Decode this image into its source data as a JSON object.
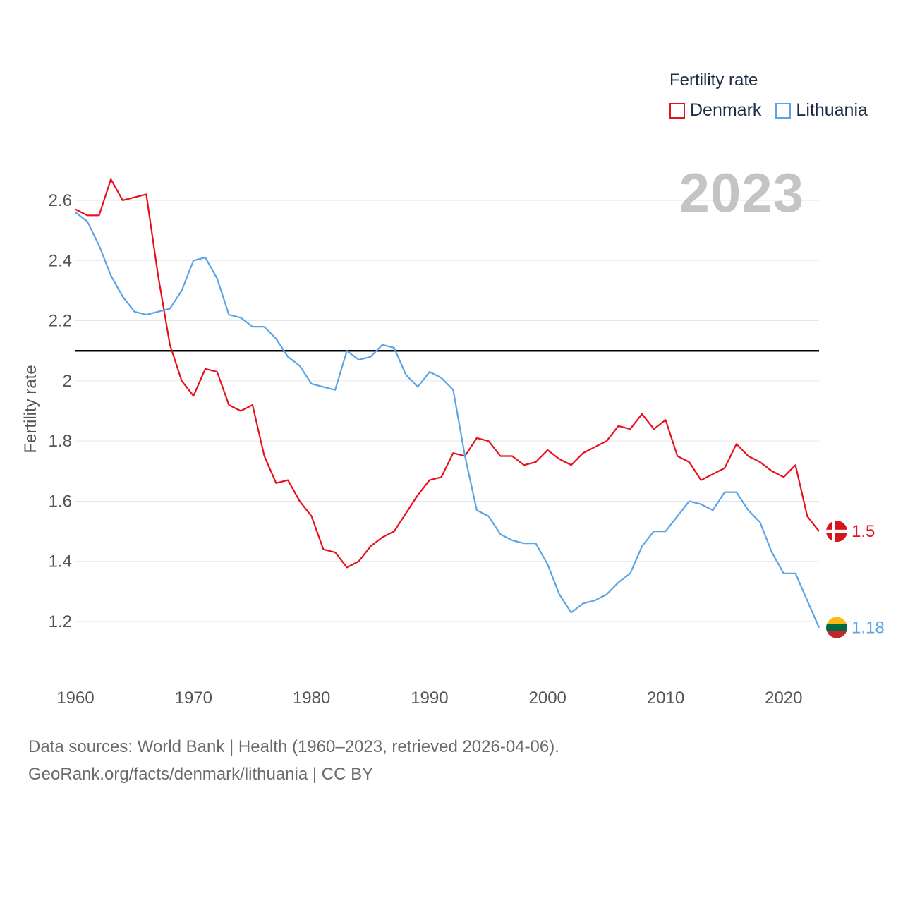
{
  "legend": {
    "title": "Fertility rate",
    "items": [
      {
        "name": "Denmark",
        "color": "#e8101c"
      },
      {
        "name": "Lithuania",
        "color": "#5ba4e6"
      }
    ]
  },
  "year_badge": "2023",
  "footer": {
    "line1": "Data sources: World Bank | Health (1960–2023, retrieved 2026-04-06).",
    "line2": "GeoRank.org/facts/denmark/lithuania | CC BY"
  },
  "chart_data": {
    "type": "line",
    "title": "Fertility rate",
    "xlabel": "",
    "ylabel": "Fertility rate",
    "xlim": [
      1960,
      2023
    ],
    "ylim": [
      1.05,
      2.75
    ],
    "xticks": [
      1960,
      1970,
      1980,
      1990,
      2000,
      2010,
      2020
    ],
    "yticks": [
      1.2,
      1.4,
      1.6,
      1.8,
      2,
      2.2,
      2.4,
      2.6
    ],
    "reference_line": {
      "y": 2.1,
      "color": "#000000"
    },
    "grid": true,
    "series": [
      {
        "name": "Denmark",
        "color": "#e8101c",
        "end_label": "1.5",
        "x": [
          1960,
          1961,
          1962,
          1963,
          1964,
          1965,
          1966,
          1967,
          1968,
          1969,
          1970,
          1971,
          1972,
          1973,
          1974,
          1975,
          1976,
          1977,
          1978,
          1979,
          1980,
          1981,
          1982,
          1983,
          1984,
          1985,
          1986,
          1987,
          1988,
          1989,
          1990,
          1991,
          1992,
          1993,
          1994,
          1995,
          1996,
          1997,
          1998,
          1999,
          2000,
          2001,
          2002,
          2003,
          2004,
          2005,
          2006,
          2007,
          2008,
          2009,
          2010,
          2011,
          2012,
          2013,
          2014,
          2015,
          2016,
          2017,
          2018,
          2019,
          2020,
          2021,
          2022,
          2023
        ],
        "values": [
          2.57,
          2.55,
          2.55,
          2.67,
          2.6,
          2.61,
          2.62,
          2.35,
          2.12,
          2.0,
          1.95,
          2.04,
          2.03,
          1.92,
          1.9,
          1.92,
          1.75,
          1.66,
          1.67,
          1.6,
          1.55,
          1.44,
          1.43,
          1.38,
          1.4,
          1.45,
          1.48,
          1.5,
          1.56,
          1.62,
          1.67,
          1.68,
          1.76,
          1.75,
          1.81,
          1.8,
          1.75,
          1.75,
          1.72,
          1.73,
          1.77,
          1.74,
          1.72,
          1.76,
          1.78,
          1.8,
          1.85,
          1.84,
          1.89,
          1.84,
          1.87,
          1.75,
          1.73,
          1.67,
          1.69,
          1.71,
          1.79,
          1.75,
          1.73,
          1.7,
          1.68,
          1.72,
          1.55,
          1.5
        ]
      },
      {
        "name": "Lithuania",
        "color": "#5ba4e6",
        "end_label": "1.18",
        "x": [
          1960,
          1961,
          1962,
          1963,
          1964,
          1965,
          1966,
          1967,
          1968,
          1969,
          1970,
          1971,
          1972,
          1973,
          1974,
          1975,
          1976,
          1977,
          1978,
          1979,
          1980,
          1981,
          1982,
          1983,
          1984,
          1985,
          1986,
          1987,
          1988,
          1989,
          1990,
          1991,
          1992,
          1993,
          1994,
          1995,
          1996,
          1997,
          1998,
          1999,
          2000,
          2001,
          2002,
          2003,
          2004,
          2005,
          2006,
          2007,
          2008,
          2009,
          2010,
          2011,
          2012,
          2013,
          2014,
          2015,
          2016,
          2017,
          2018,
          2019,
          2020,
          2021,
          2022,
          2023
        ],
        "values": [
          2.56,
          2.53,
          2.45,
          2.35,
          2.28,
          2.23,
          2.22,
          2.23,
          2.24,
          2.3,
          2.4,
          2.41,
          2.34,
          2.22,
          2.21,
          2.18,
          2.18,
          2.14,
          2.08,
          2.05,
          1.99,
          1.98,
          1.97,
          2.1,
          2.07,
          2.08,
          2.12,
          2.11,
          2.02,
          1.98,
          2.03,
          2.01,
          1.97,
          1.75,
          1.57,
          1.55,
          1.49,
          1.47,
          1.46,
          1.46,
          1.39,
          1.29,
          1.23,
          1.26,
          1.27,
          1.29,
          1.33,
          1.36,
          1.45,
          1.5,
          1.5,
          1.55,
          1.6,
          1.59,
          1.57,
          1.63,
          1.63,
          1.57,
          1.53,
          1.43,
          1.36,
          1.36,
          1.27,
          1.18
        ]
      }
    ]
  }
}
